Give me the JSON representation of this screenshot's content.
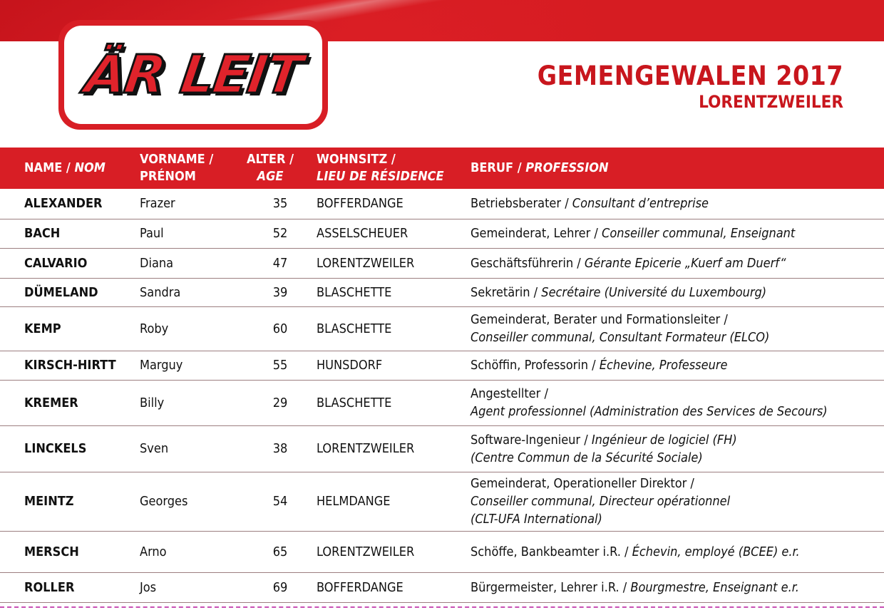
{
  "header": {
    "logo_text": "ÄR LEIT",
    "title": "GEMENGEWALEN 2017",
    "subtitle": "LORENTZWEILER",
    "brand_color": "#d81e25"
  },
  "columns": {
    "name": {
      "de": "NAME / ",
      "fr": "NOM"
    },
    "first": {
      "de": "VORNAME /",
      "fr": "PRÉNOM"
    },
    "age": {
      "de": "ALTER /",
      "fr": "AGE"
    },
    "residence": {
      "de": "WOHNSITZ /",
      "fr": "LIEU DE RÉSIDENCE"
    },
    "profession": {
      "de": "BERUF / ",
      "fr": "PROFESSION"
    }
  },
  "rows": [
    {
      "name": "ALEXANDER",
      "first": "Frazer",
      "age": "35",
      "residence": "BOFFERDANGE",
      "profession": [
        [
          "Betriebsberater / ",
          "Consultant d’entreprise"
        ]
      ]
    },
    {
      "name": "BACH",
      "first": "Paul",
      "age": "52",
      "residence": "ASSELSCHEUER",
      "profession": [
        [
          "Gemeinderat, Lehrer / ",
          "Conseiller communal, Enseignant"
        ]
      ]
    },
    {
      "name": "CALVARIO",
      "first": "Diana",
      "age": "47",
      "residence": "LORENTZWEILER",
      "profession": [
        [
          "Geschäftsführerin / ",
          "Gérante Epicerie „Kuerf am Duerf“"
        ]
      ]
    },
    {
      "name": "DÜMELAND",
      "first": "Sandra",
      "age": "39",
      "residence": "BLASCHETTE",
      "profession": [
        [
          "Sekretärin / ",
          "Secrétaire (Université du Luxembourg)"
        ]
      ]
    },
    {
      "name": "KEMP",
      "first": "Roby",
      "age": "60",
      "residence": "BLASCHETTE",
      "profession": [
        [
          "Gemeinderat, Berater und Formationsleiter /",
          ""
        ],
        [
          "",
          "Conseiller communal, Consultant Formateur (ELCO)"
        ]
      ]
    },
    {
      "name": "KIRSCH-HIRTT",
      "first": "Marguy",
      "age": "55",
      "residence": "HUNSDORF",
      "profession": [
        [
          "Schöffin, Professorin / ",
          "Échevine, Professeure"
        ]
      ]
    },
    {
      "name": "KREMER",
      "first": "Billy",
      "age": "29",
      "residence": "BLASCHETTE",
      "profession": [
        [
          "Angestellter /",
          ""
        ],
        [
          "",
          "Agent professionnel (Administration des Services de Secours)"
        ]
      ]
    },
    {
      "name": "LINCKELS",
      "first": "Sven",
      "age": "38",
      "residence": "LORENTZWEILER",
      "profession": [
        [
          "Software-Ingenieur / ",
          "Ingénieur de logiciel (FH)"
        ],
        [
          "",
          "(Centre Commun de la Sécurité Sociale)"
        ]
      ]
    },
    {
      "name": "MEINTZ",
      "first": "Georges",
      "age": "54",
      "residence": "HELMDANGE",
      "profession": [
        [
          "Gemeinderat, Operationeller Direktor /",
          ""
        ],
        [
          "",
          "Conseiller communal, Directeur opérationnel"
        ],
        [
          "",
          "(CLT-UFA International)"
        ]
      ]
    },
    {
      "name": "MERSCH",
      "first": "Arno",
      "age": "65",
      "residence": "LORENTZWEILER",
      "profession": [
        [
          "Schöffe, Bankbeamter i.R. / ",
          "Échevin,  employé  (BCEE) e.r."
        ]
      ]
    },
    {
      "name": "ROLLER",
      "first": "Jos",
      "age": "69",
      "residence": "BOFFERDANGE",
      "profession": [
        [
          "Bürgermeister, Lehrer i.R. / ",
          "Bourgmestre, Enseignant e.r."
        ]
      ]
    }
  ]
}
